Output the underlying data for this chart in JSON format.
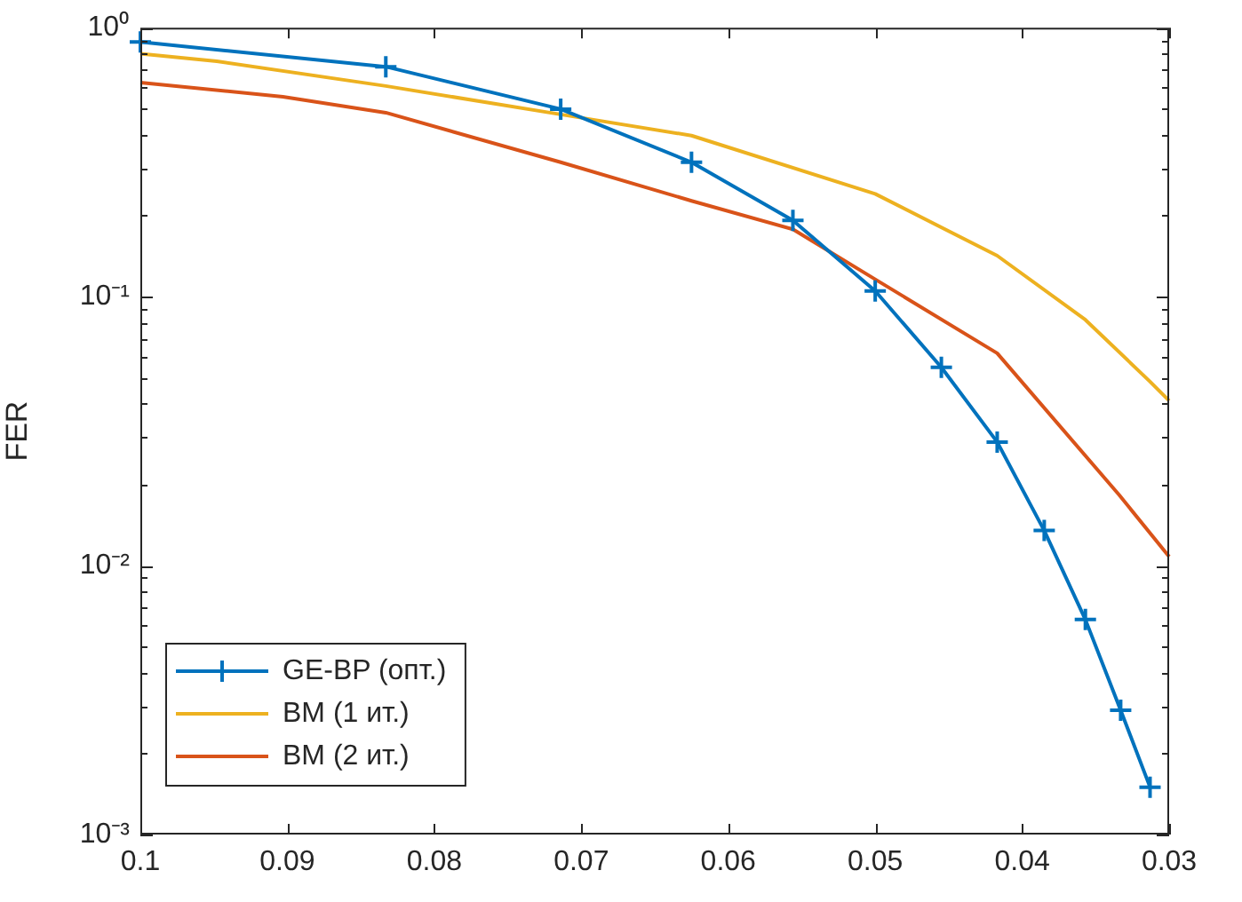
{
  "chart_data": {
    "type": "line",
    "ylabel": "FER",
    "log": "y",
    "grid": false,
    "legend": "bottom left",
    "line_style": "solid",
    "xlim": [
      0.1,
      0.03
    ],
    "xticks": [
      0.1,
      0.09,
      0.08,
      0.07,
      0.06,
      0.05,
      0.04,
      0.03
    ],
    "ylim": [
      0.001,
      1
    ],
    "yticks": [
      {
        "value": 0.001,
        "label": "10⁻³"
      },
      {
        "value": 0.002,
        "label": null
      },
      {
        "value": 0.003,
        "label": null
      },
      {
        "value": 0.004,
        "label": null
      },
      {
        "value": 0.005,
        "label": null
      },
      {
        "value": 0.006,
        "label": null
      },
      {
        "value": 0.007,
        "label": null
      },
      {
        "value": 0.008,
        "label": null
      },
      {
        "value": 0.009,
        "label": null
      },
      {
        "value": 0.01,
        "label": "10⁻²"
      },
      {
        "value": 0.02,
        "label": null
      },
      {
        "value": 0.03,
        "label": null
      },
      {
        "value": 0.04,
        "label": null
      },
      {
        "value": 0.05,
        "label": null
      },
      {
        "value": 0.06,
        "label": null
      },
      {
        "value": 0.07,
        "label": null
      },
      {
        "value": 0.08,
        "label": null
      },
      {
        "value": 0.09,
        "label": null
      },
      {
        "value": 0.1,
        "label": "10⁻¹"
      },
      {
        "value": 0.2,
        "label": null
      },
      {
        "value": 0.3,
        "label": null
      },
      {
        "value": 0.4,
        "label": null
      },
      {
        "value": 0.5,
        "label": null
      },
      {
        "value": 0.6,
        "label": null
      },
      {
        "value": 0.7,
        "label": null
      },
      {
        "value": 0.8,
        "label": null
      },
      {
        "value": 0.9,
        "label": null
      },
      {
        "value": 1,
        "label": "10⁰"
      }
    ],
    "series": [
      {
        "name": "GE-BP (опт.)",
        "color": "#0072bd",
        "marker": "cross",
        "x": [
          0.1,
          0.0833,
          0.0714,
          0.0625,
          0.0556,
          0.05,
          0.0455,
          0.0417,
          0.0385,
          0.0357,
          0.0333,
          0.0313
        ],
        "values": [
          0.885,
          0.716,
          0.498,
          0.316,
          0.192,
          0.105,
          0.0546,
          0.0288,
          0.0135,
          0.0063,
          0.0029,
          0.0015
        ]
      },
      {
        "name": "BM (1 ит.)",
        "color": "#edb120",
        "marker": "none",
        "x": [
          0.1,
          0.0948,
          0.0833,
          0.0714,
          0.0625,
          0.05,
          0.0417,
          0.0357,
          0.0313,
          0.03
        ],
        "values": [
          0.8,
          0.75,
          0.607,
          0.476,
          0.397,
          0.241,
          0.142,
          0.082,
          0.0483,
          0.041
        ]
      },
      {
        "name": "BM (2 ит.)",
        "color": "#d95319",
        "marker": "none",
        "x": [
          0.1,
          0.0903,
          0.0833,
          0.0714,
          0.0625,
          0.0556,
          0.05,
          0.0417,
          0.0334,
          0.03
        ],
        "values": [
          0.625,
          0.554,
          0.483,
          0.316,
          0.227,
          0.178,
          0.116,
          0.0616,
          0.0183,
          0.0108
        ]
      }
    ]
  }
}
